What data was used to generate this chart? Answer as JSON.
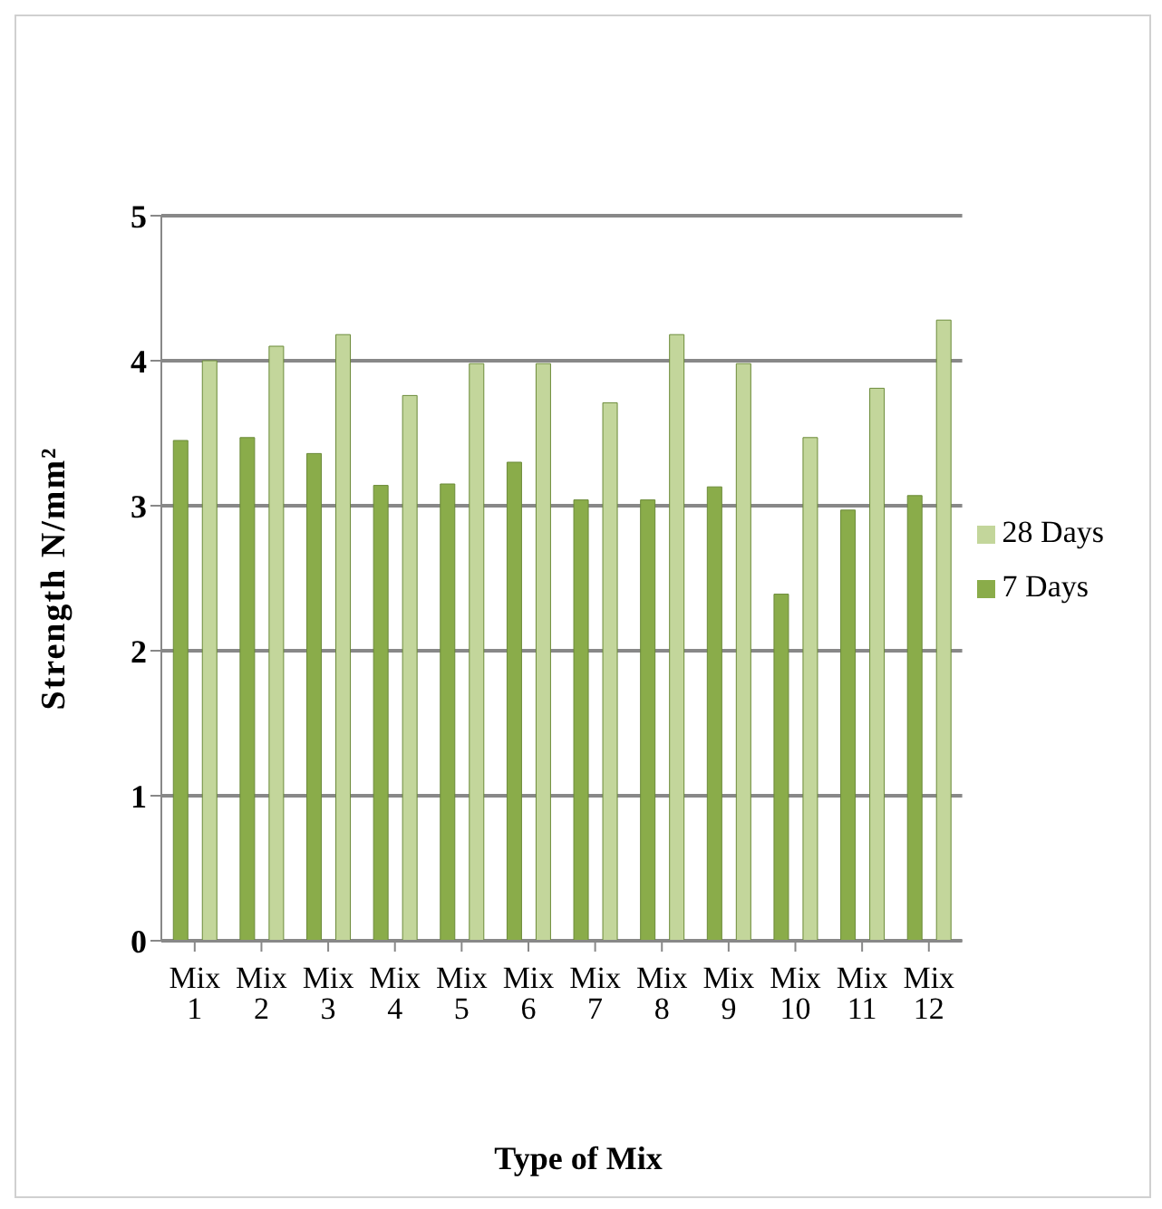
{
  "chart_data": {
    "type": "bar",
    "xlabel": "Type of Mix",
    "ylabel": "Strength N/mm²",
    "categories": [
      "Mix 1",
      "Mix 2",
      "Mix 3",
      "Mix 4",
      "Mix 5",
      "Mix 6",
      "Mix 7",
      "Mix 8",
      "Mix 9",
      "Mix 10",
      "Mix 11",
      "Mix 12"
    ],
    "series": [
      {
        "name": "7 Days",
        "color": "#8aac4a",
        "values": [
          3.45,
          3.47,
          3.36,
          3.14,
          3.15,
          3.3,
          3.04,
          3.04,
          3.13,
          2.39,
          2.97,
          3.07
        ]
      },
      {
        "name": "28 Days",
        "color": "#c3d69b",
        "values": [
          4.0,
          4.1,
          4.18,
          3.76,
          3.98,
          3.98,
          3.71,
          4.18,
          3.98,
          3.47,
          3.81,
          4.28
        ]
      }
    ],
    "ylim": [
      0,
      5
    ],
    "yticks": [
      0,
      1,
      2,
      3,
      4,
      5
    ],
    "grid": "y",
    "legend": "right"
  }
}
